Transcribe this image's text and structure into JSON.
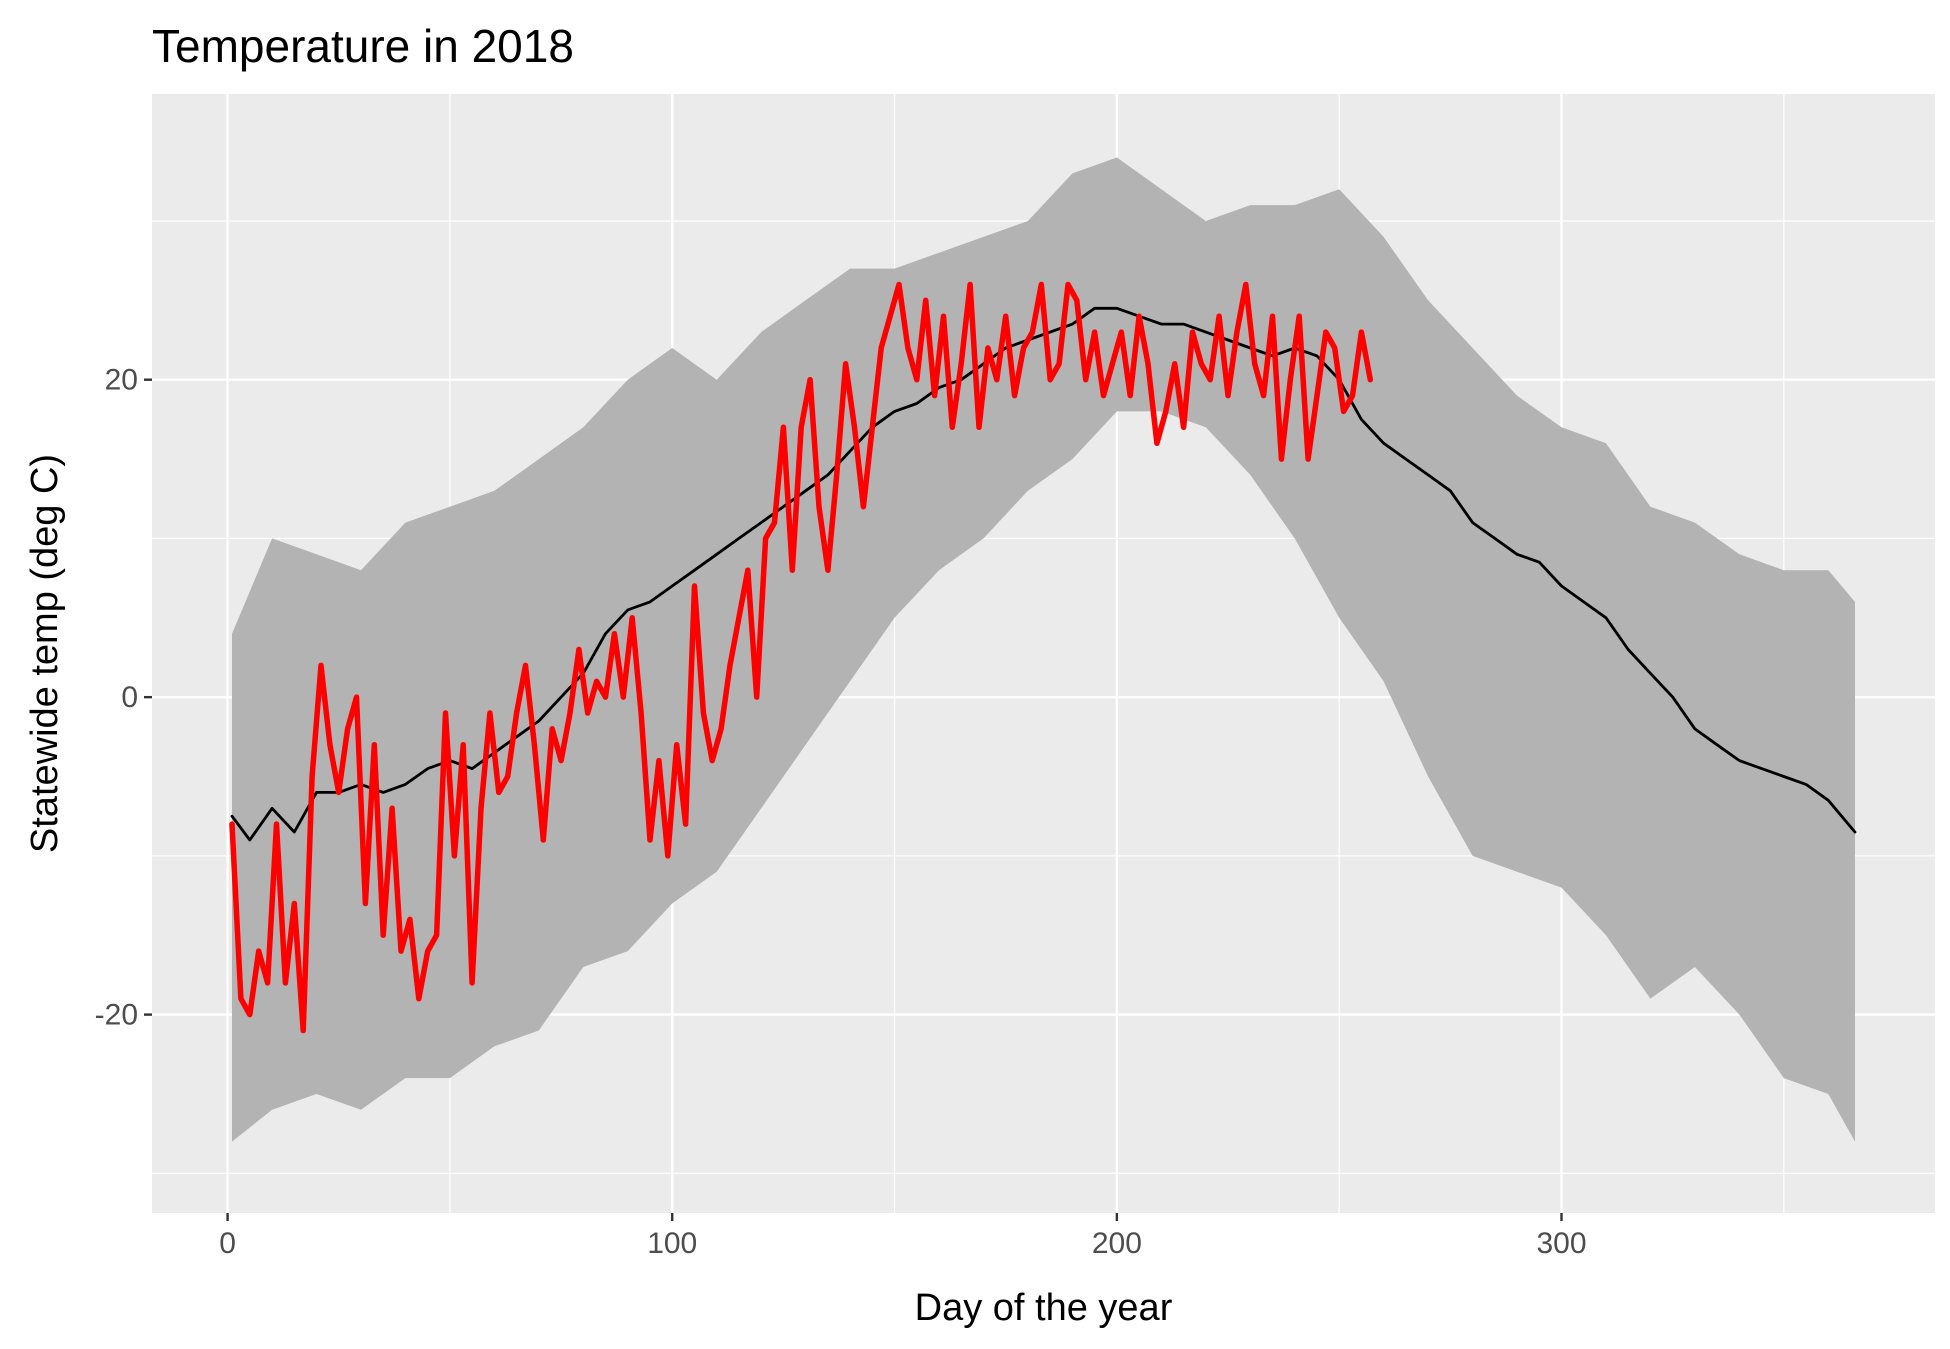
{
  "chart_data": {
    "type": "line",
    "title": "Temperature in 2018",
    "xlabel": "Day of the year",
    "ylabel": "Statewide temp (deg C)",
    "xlim": [
      -17,
      384
    ],
    "ylim": [
      -32.5,
      38
    ],
    "x_ticks": [
      0,
      100,
      200,
      300
    ],
    "x_tick_labels": [
      "0",
      "100",
      "200",
      "300"
    ],
    "y_ticks": [
      -20,
      0,
      20
    ],
    "y_tick_labels": [
      "-20",
      "0",
      "20"
    ],
    "grid": true,
    "legend": "none",
    "colors": {
      "panel": "#ebebeb",
      "grid": "#ffffff",
      "band": "#b3b3b3",
      "normal": "#000000",
      "current": "#ff0000"
    },
    "band": {
      "x": [
        1,
        10,
        20,
        30,
        40,
        50,
        60,
        70,
        80,
        90,
        100,
        110,
        120,
        130,
        140,
        150,
        160,
        170,
        180,
        190,
        200,
        210,
        220,
        230,
        240,
        250,
        260,
        270,
        280,
        290,
        300,
        310,
        320,
        330,
        340,
        350,
        360,
        366
      ],
      "upper": [
        4,
        10,
        9,
        8,
        11,
        12,
        13,
        15,
        17,
        20,
        22,
        20,
        23,
        25,
        27,
        27,
        28,
        29,
        30,
        33,
        34,
        32,
        30,
        31,
        31,
        32,
        29,
        25,
        22,
        19,
        17,
        16,
        12,
        11,
        9,
        8,
        8,
        6
      ],
      "lower": [
        -28,
        -26,
        -25,
        -26,
        -24,
        -24,
        -22,
        -21,
        -17,
        -16,
        -13,
        -11,
        -7,
        -3,
        1,
        5,
        8,
        10,
        13,
        15,
        18,
        18,
        17,
        14,
        10,
        5,
        1,
        -5,
        -10,
        -11,
        -12,
        -15,
        -19,
        -17,
        -20,
        -24,
        -25,
        -28
      ]
    },
    "series": [
      {
        "x": [
          1,
          5,
          10,
          15,
          20,
          25,
          30,
          35,
          40,
          45,
          50,
          55,
          60,
          65,
          70,
          75,
          80,
          85,
          90,
          95,
          100,
          105,
          110,
          115,
          120,
          125,
          130,
          135,
          140,
          145,
          150,
          155,
          160,
          165,
          170,
          175,
          180,
          185,
          190,
          195,
          200,
          205,
          210,
          215,
          220,
          225,
          230,
          235,
          240,
          245,
          250,
          255,
          260,
          265,
          270,
          275,
          280,
          285,
          290,
          295,
          300,
          305,
          310,
          315,
          320,
          325,
          330,
          335,
          340,
          345,
          350,
          355,
          360,
          366
        ],
        "y": [
          -7.5,
          -9,
          -7,
          -8.5,
          -6,
          -6,
          -5.5,
          -6,
          -5.5,
          -4.5,
          -4,
          -4.5,
          -3.5,
          -2.5,
          -1.5,
          0,
          1.5,
          4,
          5.5,
          6,
          7,
          8,
          9,
          10,
          11,
          12,
          13,
          14,
          15.5,
          17,
          18,
          18.5,
          19.5,
          20,
          21,
          22,
          22.5,
          23,
          23.5,
          24.5,
          24.5,
          24,
          23.5,
          23.5,
          23,
          22.5,
          22,
          21.5,
          22,
          21.5,
          20,
          17.5,
          16,
          15,
          14,
          13,
          11,
          10,
          9,
          8.5,
          7,
          6,
          5,
          3,
          1.5,
          0,
          -2,
          -3,
          -4,
          -4.5,
          -5,
          -5.5,
          -6.5,
          -8.5
        ]
      },
      {
        "x": [
          1,
          3,
          5,
          7,
          9,
          11,
          13,
          15,
          17,
          19,
          21,
          23,
          25,
          27,
          29,
          31,
          33,
          35,
          37,
          39,
          41,
          43,
          45,
          47,
          49,
          51,
          53,
          55,
          57,
          59,
          61,
          63,
          65,
          67,
          69,
          71,
          73,
          75,
          77,
          79,
          81,
          83,
          85,
          87,
          89,
          91,
          93,
          95,
          97,
          99,
          101,
          103,
          105,
          107,
          109,
          111,
          113,
          115,
          117,
          119,
          121,
          123,
          125,
          127,
          129,
          131,
          133,
          135,
          137,
          139,
          141,
          143,
          145,
          147,
          149,
          151,
          153,
          155,
          157,
          159,
          161,
          163,
          165,
          167,
          169,
          171,
          173,
          175,
          177,
          179,
          181,
          183,
          185,
          187,
          189,
          191,
          193,
          195,
          197,
          199,
          201,
          203,
          205,
          207,
          209,
          211,
          213,
          215,
          217,
          219,
          221,
          223,
          225,
          227,
          229,
          231,
          233,
          235,
          237,
          239,
          241,
          243,
          245,
          247,
          249,
          251,
          253,
          255,
          257
        ],
        "y": [
          -8,
          -19,
          -20,
          -16,
          -18,
          -8,
          -18,
          -13,
          -21,
          -5,
          2,
          -3,
          -6,
          -2,
          0,
          -13,
          -3,
          -15,
          -7,
          -16,
          -14,
          -19,
          -16,
          -15,
          -1,
          -10,
          -3,
          -18,
          -7,
          -1,
          -6,
          -5,
          -1,
          2,
          -3,
          -9,
          -2,
          -4,
          -1,
          3,
          -1,
          1,
          0,
          4,
          0,
          5,
          -1,
          -9,
          -4,
          -10,
          -3,
          -8,
          7,
          -1,
          -4,
          -2,
          2,
          5,
          8,
          0,
          10,
          11,
          17,
          8,
          17,
          20,
          12,
          8,
          14,
          21,
          17,
          12,
          17,
          22,
          24,
          26,
          22,
          20,
          25,
          19,
          24,
          17,
          21,
          26,
          17,
          22,
          20,
          24,
          19,
          22,
          23,
          26,
          20,
          21,
          26,
          25,
          20,
          23,
          19,
          21,
          23,
          19,
          24,
          21,
          16,
          18,
          21,
          17,
          23,
          21,
          20,
          24,
          19,
          23,
          26,
          21,
          19,
          24,
          15,
          20,
          24,
          15,
          19,
          23,
          22,
          18,
          19,
          23,
          20
        ]
      }
    ]
  }
}
